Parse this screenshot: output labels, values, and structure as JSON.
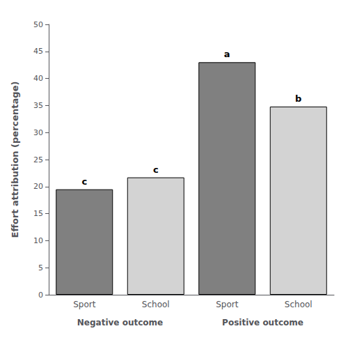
{
  "chart_data": {
    "type": "bar",
    "ylabel": "Effort attribution (percentage)",
    "categories": [
      "Sport",
      "School",
      "Sport",
      "School"
    ],
    "groups": [
      "Negative outcome",
      "Negative outcome",
      "Positive outcome",
      "Positive outcome"
    ],
    "values": [
      19.5,
      21.7,
      43.0,
      34.8
    ],
    "colors": [
      "#808080",
      "#d3d3d3",
      "#808080",
      "#d3d3d3"
    ],
    "annotations": [
      "c",
      "c",
      "a",
      "b"
    ],
    "ylim": [
      0,
      50
    ],
    "yticks": [
      0,
      5,
      10,
      15,
      20,
      25,
      30,
      35,
      40,
      45,
      50
    ],
    "grid": false
  }
}
